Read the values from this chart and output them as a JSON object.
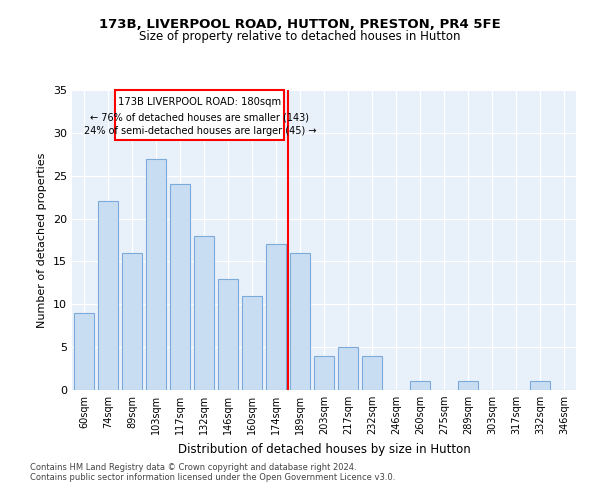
{
  "title1": "173B, LIVERPOOL ROAD, HUTTON, PRESTON, PR4 5FE",
  "title2": "Size of property relative to detached houses in Hutton",
  "xlabel": "Distribution of detached houses by size in Hutton",
  "ylabel": "Number of detached properties",
  "categories": [
    "60sqm",
    "74sqm",
    "89sqm",
    "103sqm",
    "117sqm",
    "132sqm",
    "146sqm",
    "160sqm",
    "174sqm",
    "189sqm",
    "203sqm",
    "217sqm",
    "232sqm",
    "246sqm",
    "260sqm",
    "275sqm",
    "289sqm",
    "303sqm",
    "317sqm",
    "332sqm",
    "346sqm"
  ],
  "values": [
    9,
    22,
    16,
    27,
    24,
    18,
    13,
    11,
    17,
    16,
    4,
    5,
    4,
    0,
    1,
    0,
    1,
    0,
    0,
    1,
    0
  ],
  "bar_color": "#c9ddf2",
  "bar_edge_color": "#7aabda",
  "red_line_x": 8.5,
  "annotation_title": "173B LIVERPOOL ROAD: 180sqm",
  "annotation_line1": "← 76% of detached houses are smaller (143)",
  "annotation_line2": "24% of semi-detached houses are larger (45) →",
  "ylim": [
    0,
    35
  ],
  "yticks": [
    0,
    5,
    10,
    15,
    20,
    25,
    30,
    35
  ],
  "bg_color": "#e8f0fa",
  "footnote1": "Contains HM Land Registry data © Crown copyright and database right 2024.",
  "footnote2": "Contains public sector information licensed under the Open Government Licence v3.0."
}
